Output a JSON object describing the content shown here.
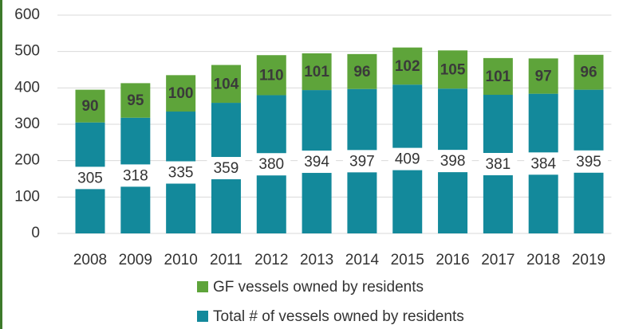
{
  "chart_data": {
    "type": "stacked_bar",
    "categories": [
      "2008",
      "2009",
      "2010",
      "2011",
      "2012",
      "2013",
      "2014",
      "2015",
      "2016",
      "2017",
      "2018",
      "2019"
    ],
    "series": [
      {
        "name": "Total # of vessels owned by residents",
        "color": "#13899b",
        "values": [
          305,
          318,
          335,
          359,
          380,
          394,
          397,
          409,
          398,
          381,
          384,
          395
        ]
      },
      {
        "name": "GF vessels owned by residents",
        "color": "#5ea43a",
        "values": [
          90,
          95,
          100,
          104,
          110,
          101,
          96,
          102,
          105,
          101,
          97,
          96
        ]
      }
    ],
    "ylim": [
      0,
      600
    ],
    "yticks": [
      0,
      100,
      200,
      300,
      400,
      500,
      600
    ],
    "grid": true
  }
}
